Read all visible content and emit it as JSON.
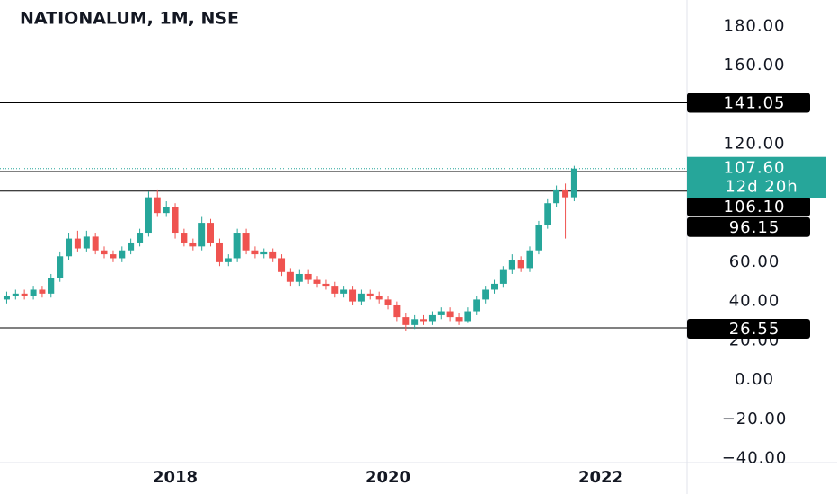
{
  "chart_data": {
    "type": "candlestick",
    "title": "NATIONALUM, 1M, NSE",
    "x": [
      2016.417,
      2016.5,
      2016.583,
      2016.667,
      2016.75,
      2016.833,
      2016.917,
      2017,
      2017.083,
      2017.167,
      2017.25,
      2017.333,
      2017.417,
      2017.5,
      2017.583,
      2017.667,
      2017.75,
      2017.833,
      2017.917,
      2018,
      2018.083,
      2018.167,
      2018.25,
      2018.333,
      2018.417,
      2018.5,
      2018.583,
      2018.667,
      2018.75,
      2018.833,
      2018.917,
      2019,
      2019.083,
      2019.167,
      2019.25,
      2019.333,
      2019.417,
      2019.5,
      2019.583,
      2019.667,
      2019.75,
      2019.833,
      2019.917,
      2020,
      2020.083,
      2020.167,
      2020.25,
      2020.333,
      2020.417,
      2020.5,
      2020.583,
      2020.667,
      2020.75,
      2020.833,
      2020.917,
      2021,
      2021.083,
      2021.167,
      2021.25,
      2021.333,
      2021.417,
      2021.5,
      2021.583,
      2021.667,
      2021.75
    ],
    "open": [
      41,
      43,
      44,
      43,
      46,
      44,
      52,
      63,
      72,
      67,
      73,
      66,
      64,
      62,
      66,
      70,
      75,
      93,
      85,
      88,
      75,
      70,
      68,
      80,
      70,
      60,
      62,
      75,
      66,
      64,
      65,
      62,
      55,
      50,
      54,
      51,
      49,
      48,
      44,
      46,
      40,
      44,
      43,
      41,
      38,
      32,
      28,
      31,
      30,
      33,
      35,
      32,
      30,
      35,
      41,
      46,
      49,
      56,
      61,
      57,
      66,
      79,
      90,
      97,
      93
    ],
    "high": [
      45,
      46,
      46,
      48,
      48,
      54,
      65,
      75,
      76,
      76,
      75,
      68,
      66,
      68,
      72,
      77,
      96,
      97,
      91,
      90,
      77,
      72,
      83,
      82,
      72,
      64,
      77,
      77,
      68,
      67,
      67,
      64,
      57,
      56,
      56,
      53,
      51,
      50,
      48,
      48,
      46,
      46,
      45,
      43,
      40,
      34,
      33,
      33,
      35,
      37,
      37,
      34,
      37,
      43,
      48,
      51,
      58,
      64,
      63,
      68,
      81,
      92,
      99,
      100,
      109
    ],
    "low": [
      39,
      41,
      41,
      41,
      42,
      42,
      50,
      61,
      65,
      65,
      64,
      62,
      60,
      60,
      64,
      68,
      73,
      83,
      83,
      72,
      68,
      66,
      66,
      68,
      58,
      58,
      60,
      64,
      62,
      62,
      60,
      53,
      48,
      48,
      49,
      47,
      46,
      42,
      42,
      38,
      38,
      41,
      39,
      36,
      30,
      25,
      26,
      28,
      28,
      31,
      30,
      28,
      29,
      33,
      39,
      44,
      47,
      54,
      55,
      55,
      64,
      77,
      88,
      72,
      91
    ],
    "close": [
      43,
      44,
      43,
      46,
      44,
      52,
      63,
      72,
      67,
      73,
      66,
      64,
      62,
      66,
      70,
      75,
      93,
      85,
      88,
      75,
      70,
      68,
      80,
      70,
      60,
      62,
      75,
      66,
      64,
      65,
      62,
      55,
      50,
      54,
      51,
      49,
      48,
      44,
      46,
      40,
      44,
      43,
      41,
      38,
      32,
      28,
      31,
      30,
      33,
      35,
      32,
      30,
      35,
      41,
      46,
      49,
      56,
      61,
      57,
      66,
      79,
      90,
      97,
      93,
      107.6
    ],
    "up_color": "#26a69a",
    "down_color": "#ef5350",
    "xlim": [
      2016.354,
      2022.81
    ],
    "xticks": [
      2018,
      2020,
      2022
    ],
    "ylim": [
      -42,
      193.4
    ],
    "yticks": [
      {
        "value": 180,
        "label": "180.00"
      },
      {
        "value": 160,
        "label": "160.00"
      },
      {
        "value": 120,
        "label": "120.00"
      },
      {
        "value": 60,
        "label": "60.00"
      },
      {
        "value": 40,
        "label": "40.00"
      },
      {
        "value": 20,
        "label": "20.00"
      },
      {
        "value": 0,
        "label": "0.00"
      },
      {
        "value": -20,
        "label": "−20.00"
      },
      {
        "value": -40,
        "label": "−40.00"
      }
    ],
    "levels": {
      "values": [
        141.05,
        106.1,
        96.15,
        26.55
      ],
      "value_labels": [
        "141.05",
        "106.10",
        "96.15",
        "26.55"
      ],
      "color": "#000000"
    },
    "last_price": {
      "value": 107.6,
      "label": "107.60",
      "countdown": "12d 20h",
      "color": "#26a69a"
    }
  }
}
